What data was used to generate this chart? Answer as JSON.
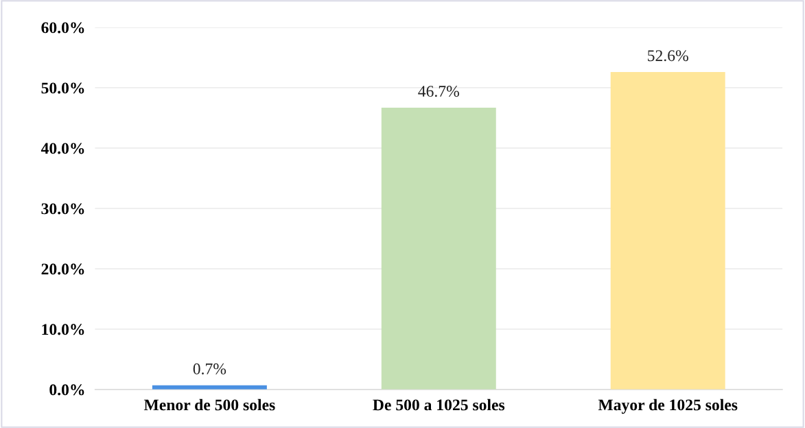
{
  "chart_data": {
    "type": "bar",
    "categories": [
      "Menor de 500 soles",
      "De 500 a 1025 soles",
      "Mayor de 1025 soles"
    ],
    "values": [
      0.7,
      46.7,
      52.6
    ],
    "colors": [
      "#4a90e2",
      "#c5e0b4",
      "#ffe699"
    ],
    "value_labels": [
      "0.7%",
      "46.7%",
      "52.6%"
    ],
    "ylim": [
      0,
      60
    ],
    "yticks": [
      {
        "value": 0,
        "label": "0.0%"
      },
      {
        "value": 10,
        "label": "10.0%"
      },
      {
        "value": 20,
        "label": "20.0%"
      },
      {
        "value": 30,
        "label": "30.0%"
      },
      {
        "value": 40,
        "label": "40.0%"
      },
      {
        "value": 50,
        "label": "50.0%"
      },
      {
        "value": 60,
        "label": "60.0%"
      }
    ],
    "grid": "y"
  }
}
